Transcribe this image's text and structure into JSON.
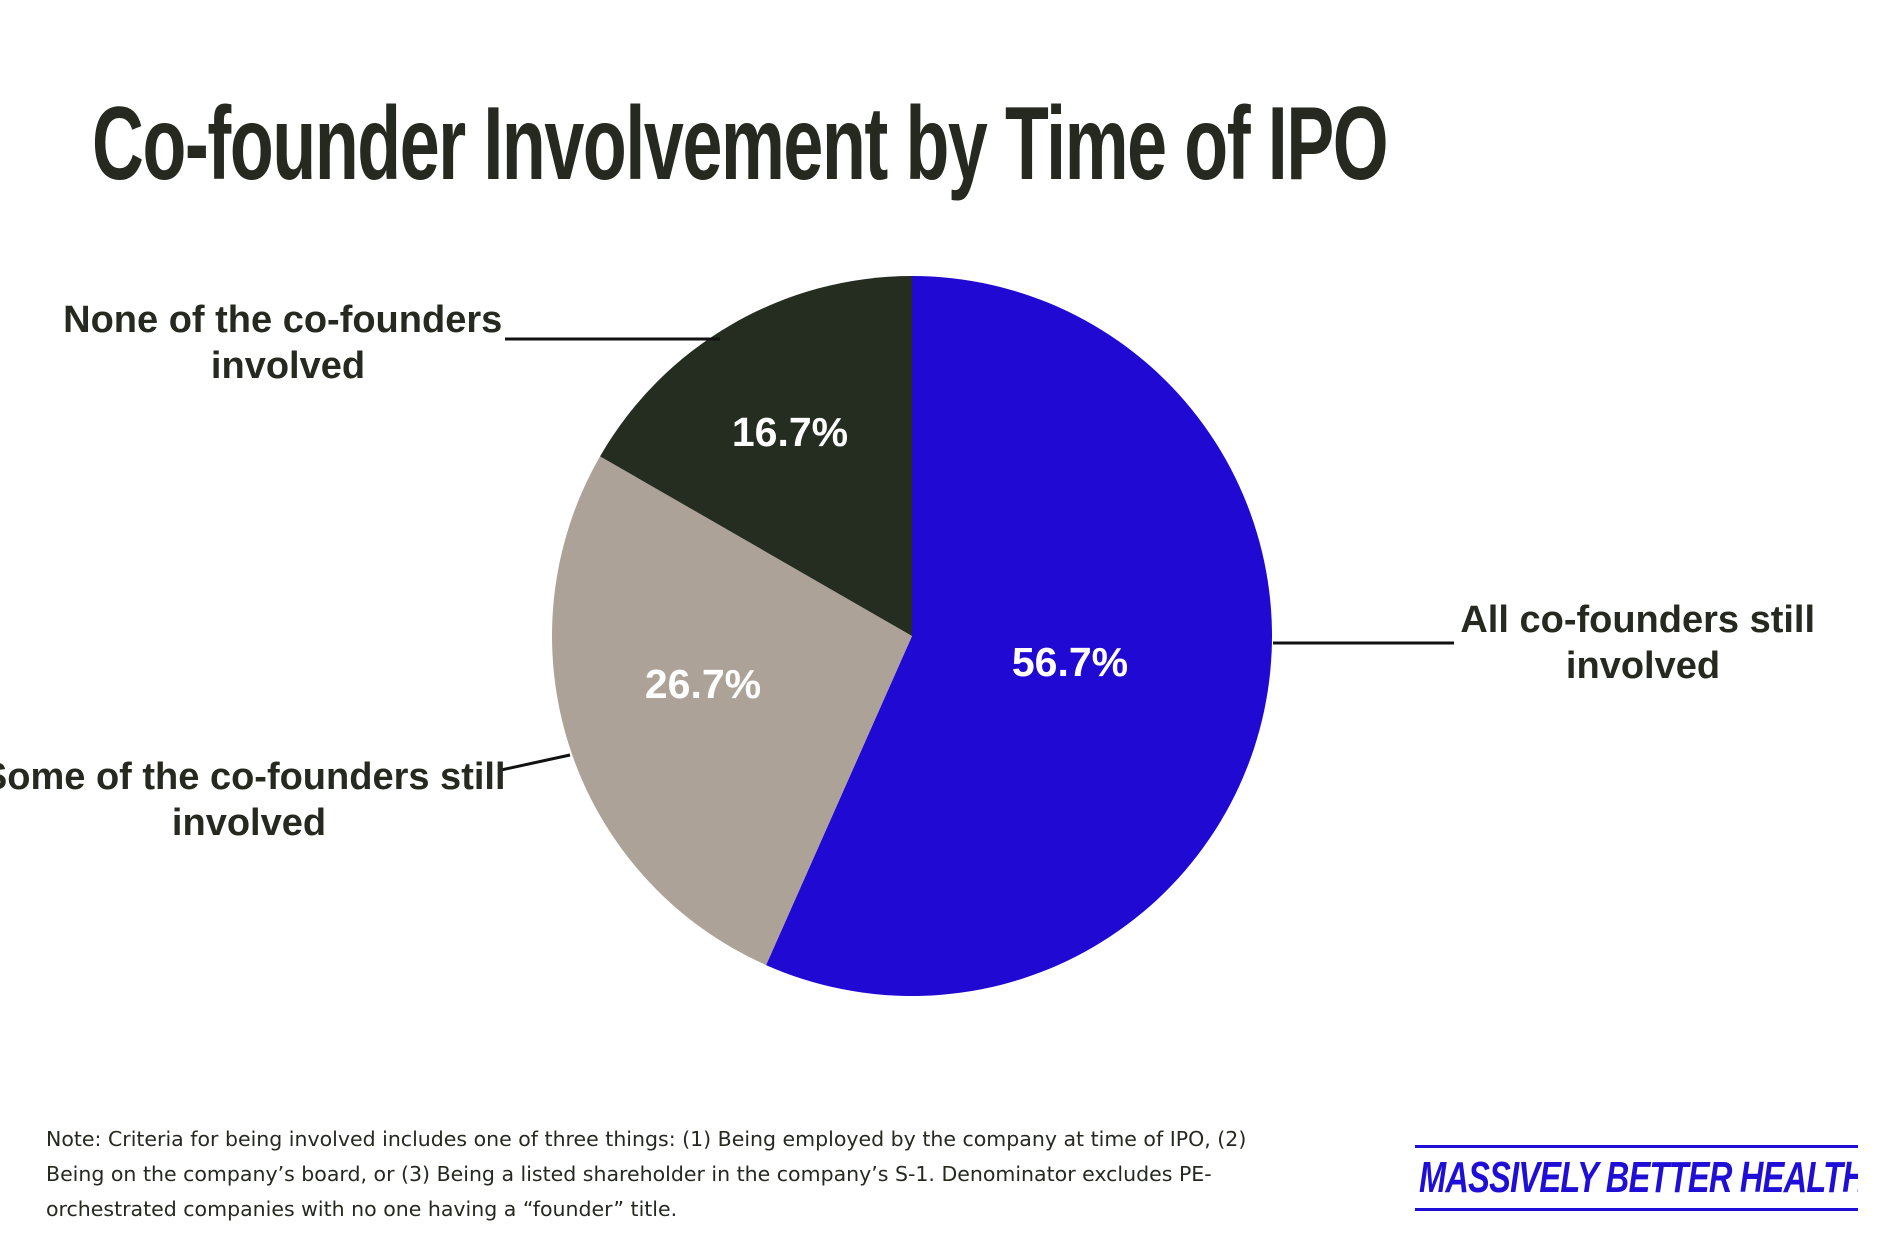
{
  "title": "Co-founder Involvement by Time of IPO",
  "colors": {
    "text": "#25291f",
    "brand": "#1f0ed6",
    "slice_all": "#2009d3",
    "slice_some": "#ada298",
    "slice_none": "#252d21",
    "slice_label": "#ffffff"
  },
  "chart_data": {
    "type": "pie",
    "title": "Co-founder Involvement by Time of IPO",
    "start": "12 o'clock",
    "direction": "clockwise",
    "slices": [
      {
        "key": "all",
        "name": "All co-founders still involved",
        "legend_lines": [
          "All co-founders still",
          "involved"
        ],
        "value": 56.7,
        "label": "56.7%",
        "color": "#2009d3"
      },
      {
        "key": "some",
        "name": "Some of the co-founders still involved",
        "legend_lines": [
          "Some of the co-founders still",
          "involved"
        ],
        "value": 26.7,
        "label": "26.7%",
        "color": "#ada298"
      },
      {
        "key": "none",
        "name": "None of the co-founders involved",
        "legend_lines": [
          "None of the co-founders",
          "involved"
        ],
        "value": 16.7,
        "label": "16.7%",
        "color": "#252d21"
      }
    ]
  },
  "note": "Note: Criteria for being involved includes one of three things: (1) Being employed by the company at time of IPO, (2) Being on the company’s board, or (3) Being a listed shareholder in the company’s S-1. Denominator excludes PE-orchestrated companies with no one having a “founder” title.",
  "brand": "MASSIVELY BETTER HEALTHCARE"
}
